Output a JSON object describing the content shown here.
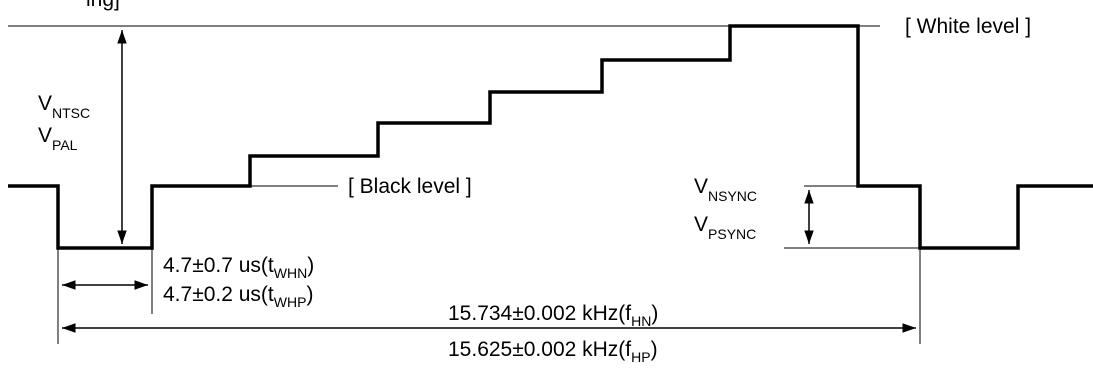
{
  "levels": {
    "white": "[ White level ]",
    "black": "[ Black level ]"
  },
  "amplitude": {
    "line1": {
      "base": "V",
      "sub": "NTSC"
    },
    "line2": {
      "base": "V",
      "sub": "PAL"
    }
  },
  "sync": {
    "line1": {
      "base": "V",
      "sub": "NSYNC"
    },
    "line2": {
      "base": "V",
      "sub": "PSYNC"
    }
  },
  "pulse_width": {
    "line1": {
      "text": "4.7±0.7 us(t",
      "sub": "WHN",
      "close": ")"
    },
    "line2": {
      "text": "4.7±0.2 us(t",
      "sub": "WHP",
      "close": ")"
    }
  },
  "frequency": {
    "line1": {
      "text": "15.734±0.002 kHz(f",
      "sub": "HN",
      "close": ")"
    },
    "line2": {
      "text": "15.625±0.002 kHz(f",
      "sub": "HP",
      "close": ")"
    }
  },
  "partial_heading": "ing]"
}
